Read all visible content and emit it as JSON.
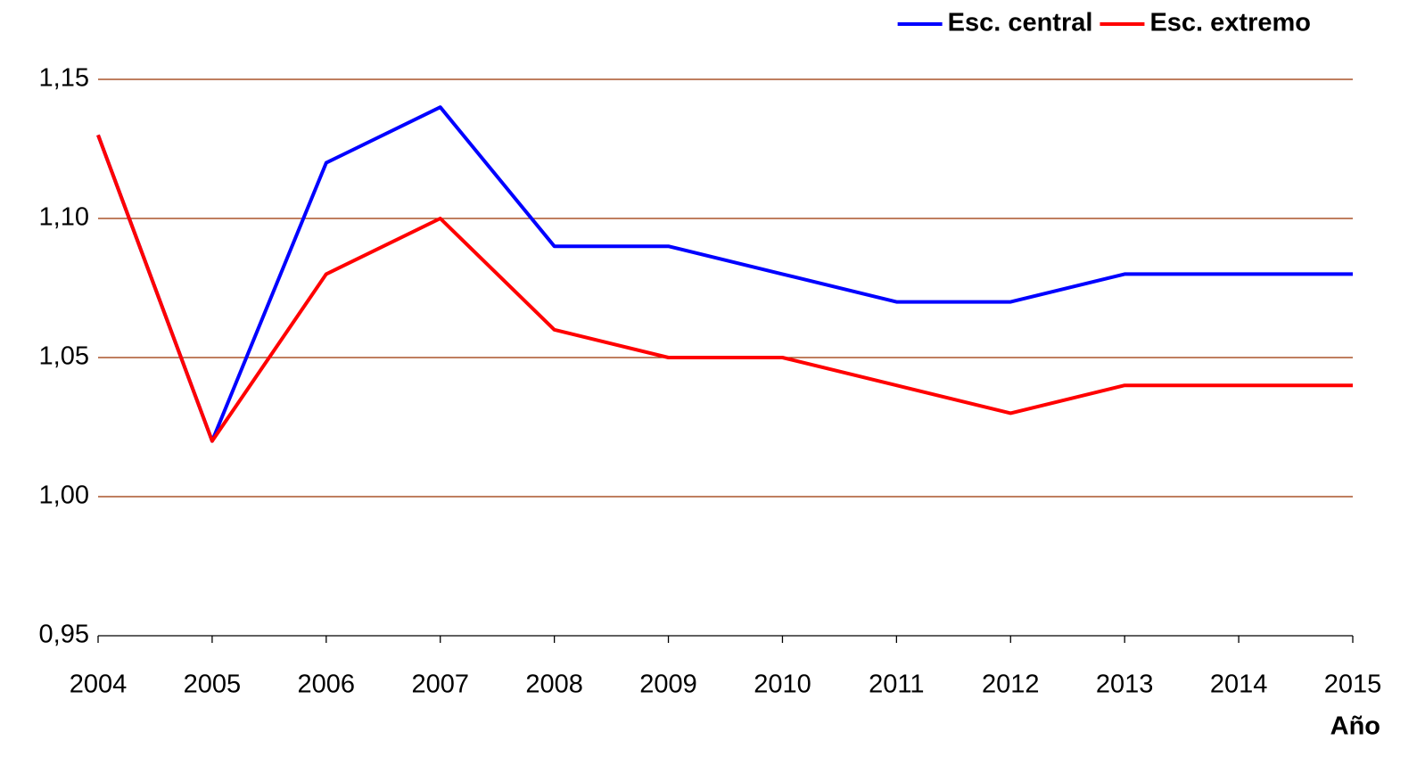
{
  "chart_data": {
    "type": "line",
    "x_label": "Año",
    "x": [
      2004,
      2005,
      2006,
      2007,
      2008,
      2009,
      2010,
      2011,
      2012,
      2013,
      2014,
      2015
    ],
    "series": [
      {
        "name": "Esc. central",
        "color": "#0000ff",
        "values": [
          1.13,
          1.02,
          1.12,
          1.14,
          1.09,
          1.09,
          1.08,
          1.07,
          1.07,
          1.08,
          1.08,
          1.08
        ]
      },
      {
        "name": "Esc. extremo",
        "color": "#ff0000",
        "values": [
          1.13,
          1.02,
          1.08,
          1.1,
          1.06,
          1.05,
          1.05,
          1.04,
          1.03,
          1.04,
          1.04,
          1.04
        ]
      }
    ],
    "xlim": [
      2004,
      2015
    ],
    "xticks": [
      2004,
      2005,
      2006,
      2007,
      2008,
      2009,
      2010,
      2011,
      2012,
      2013,
      2014,
      2015
    ],
    "ylim": [
      0.95,
      1.15
    ],
    "yticks": [
      {
        "value": 0.95,
        "label": "0,95"
      },
      {
        "value": 1.0,
        "label": "1,00"
      },
      {
        "value": 1.05,
        "label": "1,05"
      },
      {
        "value": 1.1,
        "label": "1,10"
      },
      {
        "value": 1.15,
        "label": "1,15"
      }
    ],
    "grid": true,
    "legend": "top-right"
  }
}
